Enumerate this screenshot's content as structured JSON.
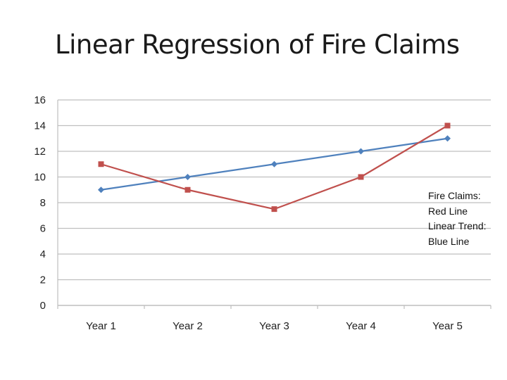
{
  "slide": {
    "title": "Linear Regression of Fire Claims"
  },
  "note": {
    "lines": [
      "Fire Claims:",
      "Red Line",
      "Linear Trend:",
      "Blue Line"
    ]
  },
  "chart_data": {
    "type": "line",
    "title": "",
    "xlabel": "",
    "ylabel": "",
    "categories": [
      "Year 1",
      "Year 2",
      "Year 3",
      "Year 4",
      "Year 5"
    ],
    "ylim": [
      0,
      16
    ],
    "yticks": [
      0,
      2,
      4,
      6,
      8,
      10,
      12,
      14,
      16
    ],
    "grid": true,
    "series": [
      {
        "values": [
          9,
          10,
          11,
          12,
          13
        ],
        "color": "#4f81bd",
        "marker": "diamond"
      },
      {
        "values": [
          11,
          9,
          7.5,
          10,
          14
        ],
        "color": "#c0504d",
        "marker": "square"
      }
    ]
  }
}
